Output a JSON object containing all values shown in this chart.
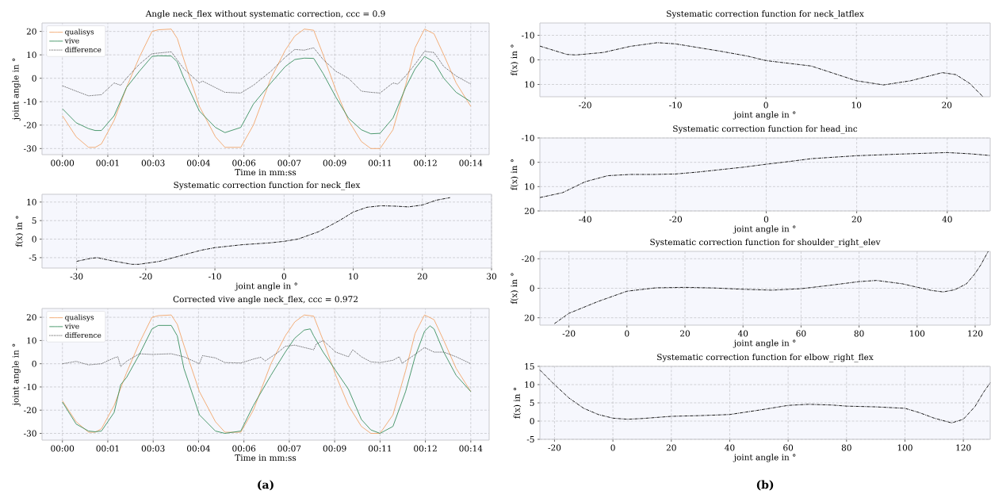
{
  "chart_data": [
    {
      "type": "line",
      "title": "Angle neck_flex without systematic correction, ccc = 0.9",
      "xlabel": "Time in mm:ss",
      "ylabel": "joint angle in °",
      "xlim": [
        -1.19,
        14.38
      ],
      "ylim": [
        -32.6,
        23.6
      ],
      "xticks": [
        {
          "value": -0.48,
          "label": "00:00"
        },
        {
          "value": 1.1,
          "label": "00:01"
        },
        {
          "value": 2.68,
          "label": "00:03"
        },
        {
          "value": 4.26,
          "label": "00:04"
        },
        {
          "value": 5.84,
          "label": "00:06"
        },
        {
          "value": 7.42,
          "label": "00:07"
        },
        {
          "value": 9.0,
          "label": "00:09"
        },
        {
          "value": 10.58,
          "label": "00:11"
        },
        {
          "value": 12.16,
          "label": "00:12"
        },
        {
          "value": 13.74,
          "label": "00:14"
        }
      ],
      "yticks": [
        -30,
        -20,
        -10,
        0,
        10,
        20
      ],
      "grid": true,
      "legend": "top left",
      "series": [
        {
          "name": "qualisys",
          "color": "#f2a66a",
          "line_style": "solid",
          "x": [
            -0.48,
            0.0,
            0.43,
            0.66,
            0.88,
            1.32,
            1.75,
            2.2,
            2.64,
            2.86,
            3.31,
            3.52,
            3.75,
            4.29,
            4.85,
            5.18,
            5.73,
            6.17,
            6.78,
            7.28,
            7.61,
            7.94,
            8.27,
            8.6,
            9.04,
            9.48,
            9.93,
            10.26,
            10.58,
            11.03,
            11.47,
            11.8,
            12.13,
            12.46,
            12.8,
            13.23,
            13.74
          ],
          "values": [
            -16,
            -25,
            -29.5,
            -29.5,
            -28,
            -18,
            -4,
            9,
            20,
            20.7,
            21,
            17,
            8,
            -12,
            -25,
            -29.5,
            -29.5,
            -20,
            0,
            12,
            18,
            21,
            20.5,
            10,
            -5,
            -18,
            -27,
            -30,
            -30,
            -22,
            -3,
            13,
            21,
            19,
            10,
            -2,
            -12
          ]
        },
        {
          "name": "vive",
          "color": "#3a8f5f",
          "line_style": "solid",
          "x": [
            -0.48,
            0.0,
            0.43,
            0.66,
            0.88,
            1.32,
            1.75,
            2.2,
            2.64,
            2.86,
            3.31,
            3.52,
            3.75,
            4.29,
            4.85,
            5.18,
            5.73,
            6.17,
            6.78,
            7.28,
            7.61,
            7.94,
            8.27,
            8.6,
            9.04,
            9.48,
            9.93,
            10.26,
            10.58,
            11.03,
            11.47,
            11.8,
            12.13,
            12.46,
            12.8,
            13.23,
            13.74
          ],
          "values": [
            -13,
            -19,
            -21.5,
            -22.3,
            -22.3,
            -16,
            -4,
            3,
            9.3,
            9.6,
            9.5,
            7,
            0,
            -14,
            -21,
            -23.2,
            -21,
            -11,
            -2,
            5,
            8,
            8.6,
            8.5,
            2,
            -8,
            -17,
            -22,
            -23.7,
            -23.5,
            -17,
            -4,
            4,
            9.3,
            7,
            0,
            -6,
            -10
          ]
        },
        {
          "name": "difference",
          "color": "#333333",
          "line_style": "dotted",
          "x": [
            -0.48,
            0.0,
            0.43,
            0.88,
            1.32,
            1.55,
            1.75,
            2.2,
            2.64,
            3.31,
            3.75,
            4.29,
            4.4,
            4.85,
            5.18,
            5.73,
            6.17,
            6.78,
            7.28,
            7.61,
            7.94,
            8.27,
            8.6,
            9.04,
            9.48,
            9.93,
            10.26,
            10.58,
            11.03,
            11.2,
            11.47,
            11.8,
            12.13,
            12.46,
            12.8,
            13.23,
            13.74
          ],
          "values": [
            -3.2,
            -5.5,
            -7.5,
            -7,
            -2,
            -3,
            0,
            6,
            10.5,
            11.3,
            4,
            -2,
            -1.2,
            -4,
            -6,
            -6.3,
            -3,
            3,
            9,
            12.3,
            12,
            13,
            8,
            3,
            0,
            -5.5,
            -6,
            -6.3,
            -2,
            -2.5,
            1,
            6,
            11.5,
            11,
            5,
            1,
            -2.5
          ]
        }
      ]
    },
    {
      "type": "line",
      "title": "Systematic correction function for neck_flex",
      "xlabel": "joint angle in °",
      "ylabel": "f(x) in °",
      "xlim": [
        -35,
        30
      ],
      "ylim": [
        -7.8,
        12.1
      ],
      "xticks": [
        -30,
        -20,
        -10,
        0,
        10,
        20,
        30
      ],
      "yticks": [
        -5,
        0,
        5,
        10
      ],
      "grid": true,
      "series": [
        {
          "color": "#000000",
          "line_style": "dashdot",
          "x": [
            -30,
            -28,
            -27,
            -25,
            -22,
            -21,
            -18,
            -15,
            -12,
            -10,
            -6,
            -2,
            0,
            2,
            5,
            8,
            10,
            12,
            14,
            16,
            18,
            20,
            22,
            24
          ],
          "values": [
            -6,
            -5.2,
            -5,
            -5.8,
            -6.8,
            -6.8,
            -6,
            -4.5,
            -3,
            -2.3,
            -1.5,
            -1,
            -0.6,
            0,
            2,
            5,
            7.3,
            8.6,
            9,
            8.9,
            8.7,
            9.2,
            10.5,
            11.2
          ]
        }
      ]
    },
    {
      "type": "line",
      "title": "Corrected vive angle neck_flex, ccc = 0.972",
      "xlabel": "Time in mm:ss",
      "ylabel": "joint angle in °",
      "xlim": [
        -1.19,
        14.38
      ],
      "ylim": [
        -32.9,
        23.8
      ],
      "xticks": [
        {
          "value": -0.48,
          "label": "00:00"
        },
        {
          "value": 1.1,
          "label": "00:01"
        },
        {
          "value": 2.68,
          "label": "00:03"
        },
        {
          "value": 4.26,
          "label": "00:04"
        },
        {
          "value": 5.84,
          "label": "00:06"
        },
        {
          "value": 7.42,
          "label": "00:07"
        },
        {
          "value": 9.0,
          "label": "00:09"
        },
        {
          "value": 10.58,
          "label": "00:11"
        },
        {
          "value": 12.16,
          "label": "00:12"
        },
        {
          "value": 13.74,
          "label": "00:14"
        }
      ],
      "yticks": [
        -30,
        -20,
        -10,
        0,
        10,
        20
      ],
      "grid": true,
      "legend": "top left",
      "annotations": [
        "(a)"
      ],
      "series": [
        {
          "name": "qualisys",
          "color": "#f2a66a",
          "line_style": "solid",
          "x": [
            -0.48,
            0.0,
            0.43,
            0.66,
            0.88,
            1.32,
            1.75,
            2.2,
            2.64,
            2.86,
            3.31,
            3.52,
            3.75,
            4.29,
            4.85,
            5.18,
            5.73,
            6.17,
            6.78,
            7.28,
            7.61,
            7.94,
            8.27,
            8.6,
            9.04,
            9.48,
            9.93,
            10.26,
            10.58,
            11.03,
            11.47,
            11.8,
            12.13,
            12.46,
            12.8,
            13.23,
            13.74
          ],
          "values": [
            -16,
            -25,
            -29.5,
            -29.5,
            -28,
            -18,
            -4,
            9,
            20,
            20.7,
            21,
            17,
            8,
            -12,
            -25,
            -29.5,
            -29.5,
            -20,
            0,
            12,
            18,
            21,
            20.5,
            10,
            -5,
            -18,
            -27,
            -30,
            -30,
            -22,
            -3,
            13,
            21,
            19,
            10,
            -2,
            -12
          ]
        },
        {
          "name": "vive",
          "color": "#3a8f5f",
          "line_style": "solid",
          "x": [
            -0.48,
            0.0,
            0.43,
            0.66,
            0.88,
            1.32,
            1.55,
            1.75,
            2.2,
            2.64,
            2.86,
            3.31,
            3.52,
            3.75,
            4.29,
            4.85,
            5.18,
            5.73,
            6.17,
            6.78,
            7.28,
            7.61,
            7.94,
            8.15,
            8.27,
            8.6,
            9.04,
            9.48,
            9.93,
            10.26,
            10.58,
            11.03,
            11.47,
            11.8,
            12.13,
            12.32,
            12.46,
            12.8,
            13.23,
            13.74
          ],
          "values": [
            -16.5,
            -26,
            -29,
            -29.3,
            -29,
            -21,
            -9,
            -6,
            4,
            15,
            16.5,
            16.5,
            12,
            -2,
            -22,
            -29,
            -30,
            -29,
            -18,
            -5,
            5,
            11,
            14.5,
            15,
            12,
            5,
            -3,
            -11,
            -24,
            -28.5,
            -30,
            -27,
            -12,
            3,
            14,
            16.3,
            15,
            5,
            -5,
            -12
          ]
        },
        {
          "name": "difference",
          "color": "#333333",
          "line_style": "dotted",
          "x": [
            -0.48,
            0.0,
            0.43,
            0.88,
            1.32,
            1.45,
            1.55,
            1.75,
            2.2,
            2.64,
            3.31,
            3.75,
            4.29,
            4.4,
            4.85,
            5.18,
            5.73,
            6.17,
            6.43,
            6.58,
            7.04,
            7.28,
            7.61,
            7.94,
            8.27,
            8.36,
            8.6,
            9.04,
            9.48,
            9.63,
            9.93,
            10.26,
            10.58,
            11.03,
            11.25,
            11.35,
            11.8,
            12.13,
            12.46,
            12.8,
            13.23,
            13.74
          ],
          "values": [
            0,
            1,
            -0.5,
            0,
            2.5,
            3,
            -1.2,
            1,
            4.3,
            4,
            4.3,
            3,
            0,
            3.5,
            2.5,
            0.5,
            0.3,
            2,
            2.8,
            1.2,
            5,
            7.5,
            8,
            7,
            6,
            8.5,
            10,
            5,
            3,
            6,
            3,
            0.8,
            0.5,
            1.5,
            3,
            0.2,
            4,
            7,
            5,
            5,
            3,
            0
          ]
        }
      ]
    },
    {
      "type": "line",
      "title": "Systematic correction function for neck_latflex",
      "xlabel": "joint angle in °",
      "ylabel": "f(x) in °",
      "xlim": [
        -25,
        24.8
      ],
      "ylim": [
        15,
        -15
      ],
      "xticks": [
        -20,
        -10,
        0,
        10,
        20
      ],
      "yticks": [
        -10,
        0,
        10
      ],
      "grid": true,
      "series": [
        {
          "color": "#000000",
          "line_style": "dashdot",
          "x": [
            -25,
            -22,
            -21,
            -18,
            -15,
            -12,
            -10,
            -5,
            -2,
            0,
            5,
            10,
            13,
            16,
            19.5,
            21,
            22.5,
            24
          ],
          "values": [
            -5.6,
            -2.2,
            -2,
            -3,
            -5.5,
            -7,
            -6.5,
            -3.5,
            -1.5,
            0.3,
            2.5,
            8.5,
            10.2,
            8.5,
            5.2,
            6,
            9.5,
            15
          ]
        }
      ]
    },
    {
      "type": "line",
      "title": "Systematic correction function for head_inc",
      "xlabel": "joint angle in °",
      "ylabel": "f(x) in °",
      "xlim": [
        -50,
        49.5
      ],
      "ylim": [
        20,
        -10
      ],
      "xticks": [
        -40,
        -20,
        0,
        20,
        40
      ],
      "yticks": [
        -10,
        0,
        10,
        20
      ],
      "grid": true,
      "series": [
        {
          "color": "#000000",
          "line_style": "dashdot",
          "x": [
            -50,
            -45,
            -40,
            -35,
            -30,
            -25,
            -20,
            -15,
            -10,
            -5,
            0,
            5,
            10,
            20,
            30,
            40,
            45,
            49.5
          ],
          "values": [
            14.5,
            12.5,
            8,
            5.5,
            5,
            5,
            4.8,
            4,
            3,
            2,
            0.8,
            -0.3,
            -1.5,
            -2.7,
            -3.4,
            -4,
            -3.5,
            -2.8
          ]
        }
      ]
    },
    {
      "type": "line",
      "title": "Systematic correction function for shoulder_right_elev",
      "xlabel": "joint angle in °",
      "ylabel": "f(x) in °",
      "xlim": [
        -30,
        125.2
      ],
      "ylim": [
        25,
        -25
      ],
      "xticks": [
        -20,
        0,
        20,
        40,
        60,
        80,
        100,
        120
      ],
      "yticks": [
        -20,
        0,
        20
      ],
      "grid": true,
      "series": [
        {
          "color": "#000000",
          "line_style": "dashdot",
          "x": [
            -25,
            -20,
            -10,
            0,
            10,
            20,
            30,
            40,
            50,
            60,
            70,
            80,
            86,
            95,
            100,
            105,
            109,
            113,
            117,
            120,
            122,
            124.5
          ],
          "values": [
            24,
            17,
            9,
            2,
            -0.3,
            -0.6,
            -0.2,
            0.7,
            1.3,
            0.3,
            -2,
            -4.5,
            -5.3,
            -3,
            -0.7,
            1.5,
            2.5,
            1,
            -3,
            -10,
            -16,
            -25
          ]
        }
      ]
    },
    {
      "type": "line",
      "title": "Systematic correction function for elbow_right_flex",
      "xlabel": "joint angle in °",
      "ylabel": "f(x) in °",
      "xlim": [
        -25,
        129.2
      ],
      "ylim": [
        -5,
        15
      ],
      "xticks": [
        -20,
        0,
        20,
        40,
        60,
        80,
        100,
        120
      ],
      "yticks": [
        -5,
        0,
        5,
        10,
        15
      ],
      "grid": true,
      "annotations": [
        "(b)"
      ],
      "series": [
        {
          "color": "#000000",
          "line_style": "dashdot",
          "x": [
            -25,
            -20,
            -15,
            -10,
            -5,
            0,
            5,
            10,
            20,
            30,
            40,
            50,
            60,
            67,
            75,
            80,
            90,
            100,
            105,
            110,
            116,
            120,
            124,
            127,
            129.2
          ],
          "values": [
            14,
            10,
            6.3,
            3.5,
            1.8,
            0.8,
            0.5,
            0.7,
            1.3,
            1.5,
            1.8,
            3,
            4.3,
            4.6,
            4.4,
            4.1,
            3.9,
            3.5,
            2.3,
            0.8,
            -0.5,
            0.5,
            4,
            8,
            10.5
          ]
        }
      ]
    }
  ]
}
